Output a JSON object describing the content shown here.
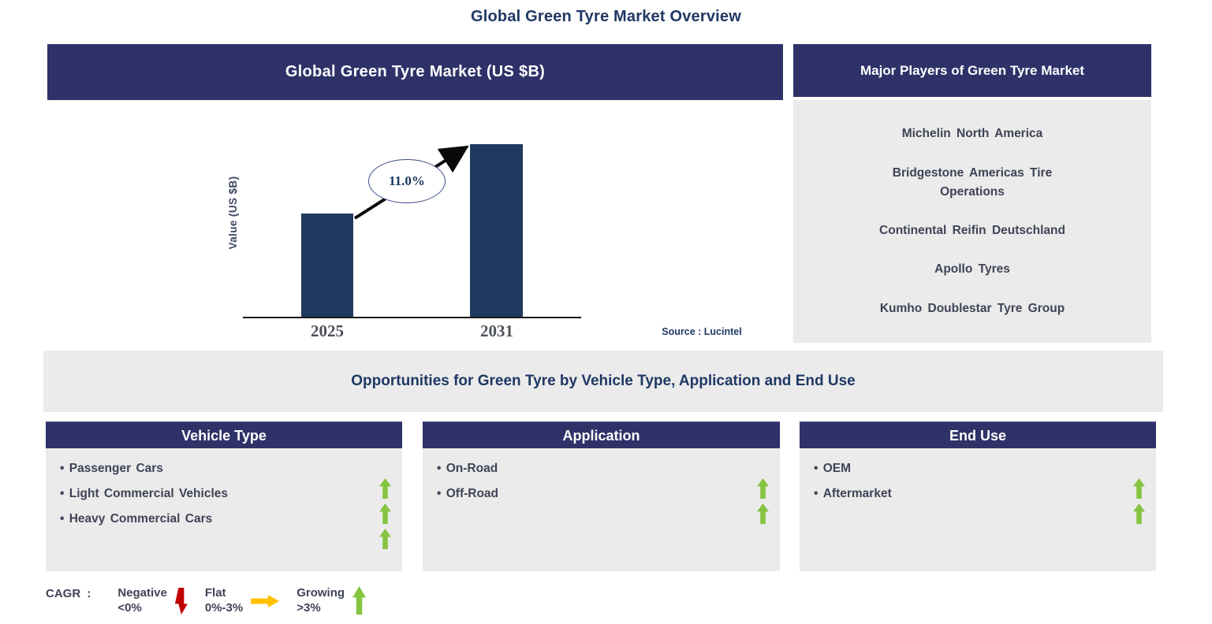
{
  "page_title": "Global Green Tyre Market Overview",
  "chart_panel": {
    "title": "Global Green Tyre Market (US $B)",
    "y_axis_label": "Value (US $B)",
    "growth_label": "11.0%",
    "source": "Source : Lucintel",
    "year_left": "2025",
    "year_right": "2031"
  },
  "chart_data": {
    "type": "bar",
    "title": "Global Green Tyre Market (US $B)",
    "categories": [
      "2025",
      "2031"
    ],
    "values": [
      0.6,
      1.0
    ],
    "values_note": "relative bar heights; value axis unlabeled",
    "xlabel": "",
    "ylabel": "Value (US $B)",
    "annotation": "11.0%",
    "annotation_label": "CAGR",
    "bar_color": "#1F3A5F",
    "grid": false,
    "legend_shown": false
  },
  "players_panel": {
    "title": "Major Players of Green Tyre Market",
    "players": [
      "Michelin North America",
      "Bridgestone Americas Tire Operations",
      "Continental Reifin Deutschland",
      "Apollo Tyres",
      "Kumho Doublestar Tyre Group"
    ]
  },
  "opportunities": {
    "title": "Opportunities for Green Tyre by Vehicle Type, Application and End Use",
    "columns": [
      {
        "header": "Vehicle Type",
        "items": [
          "Passenger Cars",
          "Light Commercial Vehicles",
          "Heavy Commercial Cars"
        ],
        "trend": "growing",
        "trend_arrow_count": 3
      },
      {
        "header": "Application",
        "items": [
          "On-Road",
          "Off-Road"
        ],
        "trend": "growing",
        "trend_arrow_count": 2
      },
      {
        "header": "End Use",
        "items": [
          "OEM",
          "Aftermarket"
        ],
        "trend": "growing",
        "trend_arrow_count": 2
      }
    ]
  },
  "legend": {
    "label": "CAGR :",
    "entries": [
      {
        "name": "Negative",
        "range": "<0%",
        "icon": "down-arrow-icon",
        "color": "#C00000"
      },
      {
        "name": "Flat",
        "range": "0%-3%",
        "icon": "right-arrow-icon",
        "color": "#FFC000"
      },
      {
        "name": "Growing",
        "range": ">3%",
        "icon": "up-arrow-icon",
        "color": "#85C441"
      }
    ]
  },
  "colors": {
    "header_navy": "#2E3268",
    "title_navy": "#1F3864",
    "body_text": "#3F4356",
    "bar_navy": "#1F3A5F",
    "panel_gray": "#EBEBEB",
    "growth_green": "#85C441",
    "negative_red": "#C00000",
    "flat_amber": "#FFC000"
  }
}
